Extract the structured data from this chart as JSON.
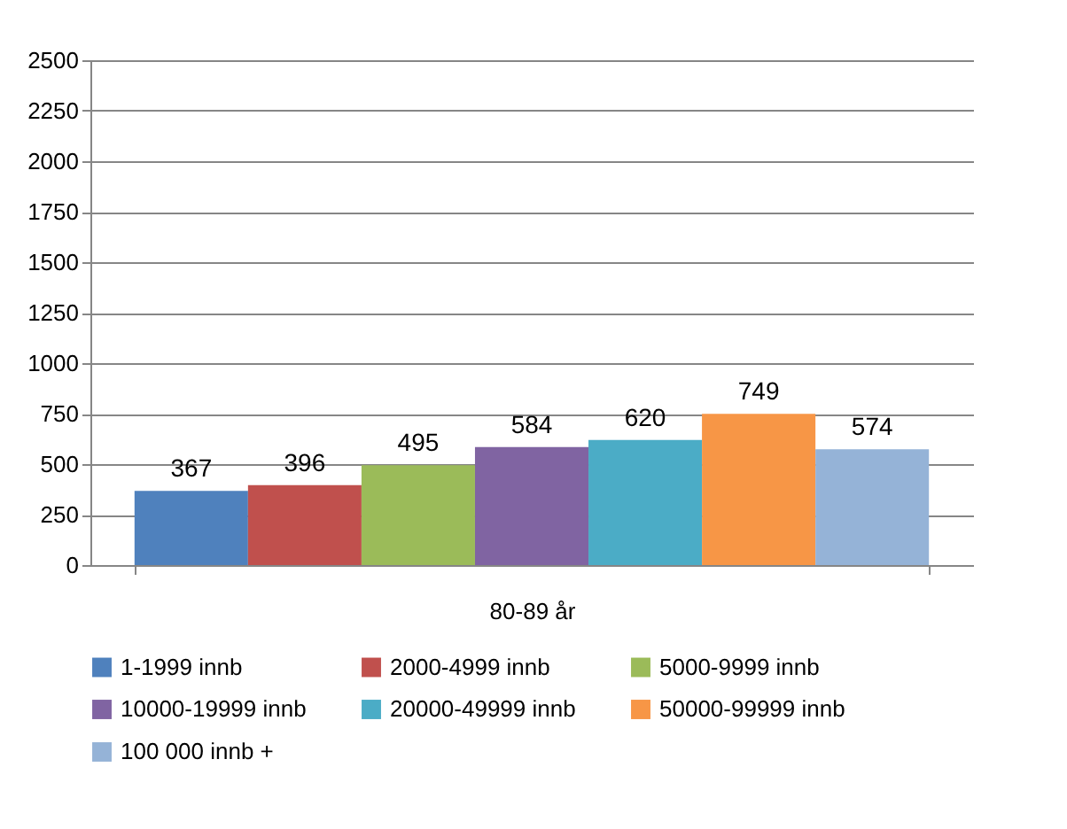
{
  "chart_data": {
    "type": "bar",
    "categories": [
      "80-89 år"
    ],
    "series": [
      {
        "name": "1-1999 innb",
        "color": "#4f81bd",
        "values": [
          367
        ]
      },
      {
        "name": "2000-4999 innb",
        "color": "#c0504d",
        "values": [
          396
        ]
      },
      {
        "name": "5000-9999 innb",
        "color": "#9bbb59",
        "values": [
          495
        ]
      },
      {
        "name": "10000-19999 innb",
        "color": "#8064a2",
        "values": [
          584
        ]
      },
      {
        "name": "20000-49999 innb",
        "color": "#4bacc6",
        "values": [
          620
        ]
      },
      {
        "name": "50000-99999 innb",
        "color": "#f79646",
        "values": [
          749
        ]
      },
      {
        "name": "100 000 innb +",
        "color": "#95b3d7",
        "values": [
          574
        ]
      }
    ],
    "ylim": [
      0,
      2500
    ],
    "yticks": [
      0,
      250,
      500,
      750,
      1000,
      1250,
      1500,
      1750,
      2000,
      2250,
      2500
    ],
    "grid": "y",
    "legend": "bottom",
    "data_labels": true
  }
}
